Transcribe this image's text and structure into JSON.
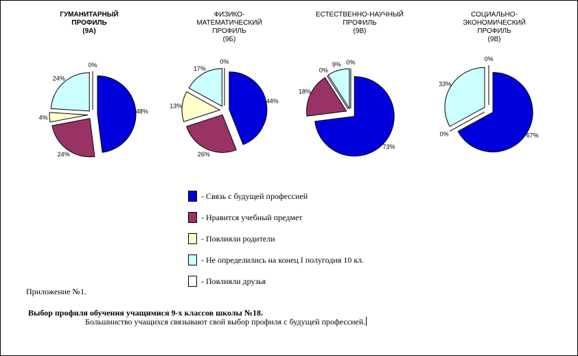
{
  "chart_data": [
    {
      "type": "pie",
      "title_lines": [
        "ГУМАНИТАРНЫЙ",
        "ПРОФИЛЬ"
      ],
      "class": "(9А)",
      "bold": true,
      "slices": [
        {
          "category": "Связь с будущей профессией",
          "value": 48,
          "label": "48%"
        },
        {
          "category": "Нравится учебный предмет",
          "value": 24,
          "label": "24%"
        },
        {
          "category": "Повлияли родители",
          "value": 4,
          "label": "4%"
        },
        {
          "category": "Не определились на конец I полугодия 10 кл.",
          "value": 24,
          "label": "24%"
        },
        {
          "category": "Повлияли друзья",
          "value": 0,
          "label": "0%"
        }
      ]
    },
    {
      "type": "pie",
      "title_lines": [
        "ФИЗИКО-",
        "МАТЕМАТИЧЕСКИЙ",
        "ПРОФИЛЬ"
      ],
      "class": "(9Б)",
      "bold": false,
      "slices": [
        {
          "category": "Связь с будущей профессией",
          "value": 44,
          "label": "44%"
        },
        {
          "category": "Нравится учебный предмет",
          "value": 26,
          "label": "26%"
        },
        {
          "category": "Повлияли родители",
          "value": 13,
          "label": "13%"
        },
        {
          "category": "Не определились на конец I полугодия 10 кл.",
          "value": 17,
          "label": "17%"
        },
        {
          "category": "Повлияли друзья",
          "value": 0,
          "label": "0%"
        }
      ]
    },
    {
      "type": "pie",
      "title_lines": [
        "ЕСТЕСТВЕННО-НАУЧНЫЙ",
        "ПРОФИЛЬ"
      ],
      "class": "(9В)",
      "bold": false,
      "slices": [
        {
          "category": "Связь с будущей профессией",
          "value": 73,
          "label": "73%"
        },
        {
          "category": "Нравится учебный предмет",
          "value": 18,
          "label": "18%"
        },
        {
          "category": "Повлияли родители",
          "value": 0,
          "label": "0%"
        },
        {
          "category": "Не определились на конец I полугодия 10 кл.",
          "value": 9,
          "label": "9%"
        },
        {
          "category": "Повлияли друзья",
          "value": 0,
          "label": "0%"
        }
      ]
    },
    {
      "type": "pie",
      "title_lines": [
        "СОЦИАЛЬНО-",
        "ЭКОНОМИЧЕСКИЙ",
        "ПРОФИЛЬ"
      ],
      "class": "(9В)",
      "bold": false,
      "slices": [
        {
          "category": "Связь с будущей профессией",
          "value": 67,
          "label": "67%"
        },
        {
          "category": "Повлияли родители",
          "value": 0,
          "label": "0%"
        },
        {
          "category": "Не определились на конец I полугодия 10 кл.",
          "value": 33,
          "label": "33%"
        },
        {
          "category": "Повлияли друзья",
          "value": 0,
          "label": "0%"
        }
      ]
    }
  ],
  "colors": {
    "Связь с будущей профессией": "#0000dd",
    "Нравится учебный предмет": "#993366",
    "Повлияли родители": "#ffffcc",
    "Не определились на конец I полугодия 10 кл.": "#ccffff",
    "Повлияли друзья": "#ffffff"
  },
  "legend": [
    {
      "text": "- Связь с будущей профессией",
      "color": "#0000dd"
    },
    {
      "text": "- Нравится учебный предмет",
      "color": "#993366"
    },
    {
      "text": "- Повлияли родители",
      "color": "#ffffcc"
    },
    {
      "text": "- Не определились на конец I полугодия 10 кл.",
      "color": "#ccffff"
    },
    {
      "text": "- Повлияли друзья",
      "color": "#ffffff"
    }
  ],
  "document": {
    "appendix": "Приложение №1.",
    "heading": "Выбор профиля обучения учащимися 9-х классов школы №18.",
    "summary": "Большинство учащихся связывают свой выбор профиля с будущей профессией."
  }
}
